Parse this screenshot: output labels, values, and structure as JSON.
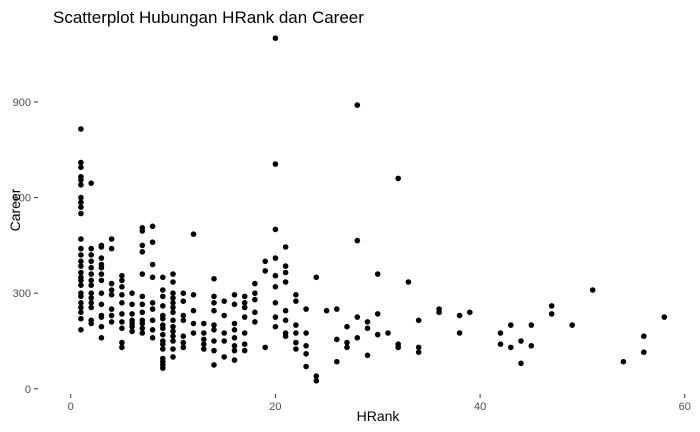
{
  "chart_data": {
    "type": "scatter",
    "title": "Scatterplot Hubungan HRank dan Career",
    "xlabel": "HRank",
    "ylabel": "Career",
    "xlim": [
      -3,
      61
    ],
    "ylim": [
      -10,
      1110
    ],
    "x_ticks": [
      0,
      20,
      40,
      60
    ],
    "x_tick_labels": [
      "0",
      "20",
      "40",
      "60"
    ],
    "y_ticks": [
      0,
      300,
      600,
      900
    ],
    "y_tick_labels": [
      "0",
      "300",
      "600",
      "900"
    ],
    "grid": false,
    "legend": "none",
    "point_color": "#000000",
    "points": [
      [
        1,
        815
      ],
      [
        1,
        710
      ],
      [
        1,
        695
      ],
      [
        1,
        665
      ],
      [
        1,
        655
      ],
      [
        1,
        640
      ],
      [
        1,
        600
      ],
      [
        1,
        585
      ],
      [
        1,
        570
      ],
      [
        1,
        550
      ],
      [
        1,
        470
      ],
      [
        1,
        440
      ],
      [
        1,
        420
      ],
      [
        1,
        400
      ],
      [
        1,
        385
      ],
      [
        1,
        365
      ],
      [
        1,
        350
      ],
      [
        1,
        340
      ],
      [
        1,
        325
      ],
      [
        1,
        300
      ],
      [
        1,
        290
      ],
      [
        1,
        270
      ],
      [
        1,
        255
      ],
      [
        1,
        240
      ],
      [
        1,
        220
      ],
      [
        1,
        185
      ],
      [
        2,
        645
      ],
      [
        2,
        440
      ],
      [
        2,
        420
      ],
      [
        2,
        400
      ],
      [
        2,
        380
      ],
      [
        2,
        360
      ],
      [
        2,
        340
      ],
      [
        2,
        325
      ],
      [
        2,
        300
      ],
      [
        2,
        285
      ],
      [
        2,
        270
      ],
      [
        2,
        255
      ],
      [
        2,
        215
      ],
      [
        2,
        205
      ],
      [
        3,
        450
      ],
      [
        3,
        445
      ],
      [
        3,
        410
      ],
      [
        3,
        390
      ],
      [
        3,
        380
      ],
      [
        3,
        360
      ],
      [
        3,
        340
      ],
      [
        3,
        300
      ],
      [
        3,
        265
      ],
      [
        3,
        230
      ],
      [
        3,
        225
      ],
      [
        3,
        195
      ],
      [
        3,
        160
      ],
      [
        4,
        470
      ],
      [
        4,
        440
      ],
      [
        4,
        330
      ],
      [
        4,
        310
      ],
      [
        4,
        295
      ],
      [
        4,
        250
      ],
      [
        4,
        230
      ],
      [
        4,
        210
      ],
      [
        5,
        355
      ],
      [
        5,
        340
      ],
      [
        5,
        320
      ],
      [
        5,
        295
      ],
      [
        5,
        270
      ],
      [
        5,
        235
      ],
      [
        5,
        210
      ],
      [
        5,
        190
      ],
      [
        5,
        145
      ],
      [
        5,
        130
      ],
      [
        6,
        300
      ],
      [
        6,
        265
      ],
      [
        6,
        235
      ],
      [
        6,
        215
      ],
      [
        6,
        205
      ],
      [
        6,
        195
      ],
      [
        6,
        180
      ],
      [
        7,
        505
      ],
      [
        7,
        495
      ],
      [
        7,
        450
      ],
      [
        7,
        430
      ],
      [
        7,
        360
      ],
      [
        7,
        290
      ],
      [
        7,
        265
      ],
      [
        7,
        240
      ],
      [
        7,
        215
      ],
      [
        7,
        205
      ],
      [
        7,
        190
      ],
      [
        7,
        175
      ],
      [
        8,
        510
      ],
      [
        8,
        460
      ],
      [
        8,
        390
      ],
      [
        8,
        350
      ],
      [
        8,
        270
      ],
      [
        8,
        250
      ],
      [
        8,
        215
      ],
      [
        8,
        185
      ],
      [
        8,
        160
      ],
      [
        9,
        350
      ],
      [
        9,
        310
      ],
      [
        9,
        290
      ],
      [
        9,
        260
      ],
      [
        9,
        230
      ],
      [
        9,
        220
      ],
      [
        9,
        200
      ],
      [
        9,
        190
      ],
      [
        9,
        170
      ],
      [
        9,
        150
      ],
      [
        9,
        140
      ],
      [
        9,
        125
      ],
      [
        9,
        95
      ],
      [
        9,
        85
      ],
      [
        9,
        75
      ],
      [
        9,
        65
      ],
      [
        10,
        360
      ],
      [
        10,
        335
      ],
      [
        10,
        300
      ],
      [
        10,
        285
      ],
      [
        10,
        270
      ],
      [
        10,
        255
      ],
      [
        10,
        240
      ],
      [
        10,
        215
      ],
      [
        10,
        195
      ],
      [
        10,
        180
      ],
      [
        10,
        165
      ],
      [
        10,
        150
      ],
      [
        10,
        125
      ],
      [
        10,
        100
      ],
      [
        11,
        300
      ],
      [
        11,
        275
      ],
      [
        11,
        230
      ],
      [
        11,
        215
      ],
      [
        11,
        165
      ],
      [
        11,
        145
      ],
      [
        11,
        130
      ],
      [
        12,
        485
      ],
      [
        12,
        295
      ],
      [
        12,
        245
      ],
      [
        12,
        205
      ],
      [
        12,
        175
      ],
      [
        13,
        205
      ],
      [
        13,
        175
      ],
      [
        13,
        155
      ],
      [
        13,
        140
      ],
      [
        13,
        125
      ],
      [
        14,
        345
      ],
      [
        14,
        290
      ],
      [
        14,
        270
      ],
      [
        14,
        245
      ],
      [
        14,
        200
      ],
      [
        14,
        185
      ],
      [
        14,
        150
      ],
      [
        14,
        120
      ],
      [
        14,
        75
      ],
      [
        15,
        275
      ],
      [
        15,
        230
      ],
      [
        15,
        175
      ],
      [
        15,
        150
      ],
      [
        15,
        100
      ],
      [
        16,
        295
      ],
      [
        16,
        265
      ],
      [
        16,
        205
      ],
      [
        16,
        185
      ],
      [
        16,
        160
      ],
      [
        16,
        135
      ],
      [
        16,
        120
      ],
      [
        16,
        90
      ],
      [
        17,
        290
      ],
      [
        17,
        270
      ],
      [
        17,
        255
      ],
      [
        17,
        225
      ],
      [
        17,
        175
      ],
      [
        17,
        140
      ],
      [
        17,
        120
      ],
      [
        18,
        330
      ],
      [
        18,
        300
      ],
      [
        18,
        280
      ],
      [
        18,
        240
      ],
      [
        18,
        210
      ],
      [
        19,
        400
      ],
      [
        19,
        370
      ],
      [
        19,
        130
      ],
      [
        20,
        1100
      ],
      [
        20,
        705
      ],
      [
        20,
        500
      ],
      [
        20,
        410
      ],
      [
        20,
        355
      ],
      [
        20,
        320
      ],
      [
        20,
        270
      ],
      [
        20,
        225
      ],
      [
        20,
        195
      ],
      [
        21,
        445
      ],
      [
        21,
        385
      ],
      [
        21,
        365
      ],
      [
        21,
        335
      ],
      [
        21,
        245
      ],
      [
        21,
        215
      ],
      [
        21,
        175
      ],
      [
        21,
        165
      ],
      [
        22,
        295
      ],
      [
        22,
        275
      ],
      [
        22,
        200
      ],
      [
        22,
        175
      ],
      [
        22,
        145
      ],
      [
        22,
        125
      ],
      [
        23,
        250
      ],
      [
        23,
        175
      ],
      [
        23,
        135
      ],
      [
        23,
        110
      ],
      [
        23,
        70
      ],
      [
        24,
        350
      ],
      [
        24,
        40
      ],
      [
        24,
        25
      ],
      [
        25,
        245
      ],
      [
        26,
        250
      ],
      [
        26,
        155
      ],
      [
        26,
        85
      ],
      [
        27,
        195
      ],
      [
        27,
        145
      ],
      [
        27,
        130
      ],
      [
        28,
        890
      ],
      [
        28,
        465
      ],
      [
        28,
        225
      ],
      [
        28,
        160
      ],
      [
        29,
        210
      ],
      [
        29,
        190
      ],
      [
        29,
        105
      ],
      [
        30,
        360
      ],
      [
        30,
        235
      ],
      [
        30,
        170
      ],
      [
        31,
        175
      ],
      [
        32,
        660
      ],
      [
        32,
        140
      ],
      [
        32,
        130
      ],
      [
        33,
        335
      ],
      [
        34,
        215
      ],
      [
        34,
        130
      ],
      [
        34,
        115
      ],
      [
        36,
        250
      ],
      [
        36,
        240
      ],
      [
        38,
        230
      ],
      [
        38,
        175
      ],
      [
        39,
        240
      ],
      [
        42,
        175
      ],
      [
        42,
        140
      ],
      [
        43,
        200
      ],
      [
        43,
        130
      ],
      [
        44,
        150
      ],
      [
        44,
        80
      ],
      [
        45,
        200
      ],
      [
        45,
        135
      ],
      [
        47,
        260
      ],
      [
        47,
        235
      ],
      [
        49,
        200
      ],
      [
        51,
        310
      ],
      [
        54,
        85
      ],
      [
        56,
        165
      ],
      [
        56,
        115
      ],
      [
        58,
        225
      ]
    ]
  }
}
